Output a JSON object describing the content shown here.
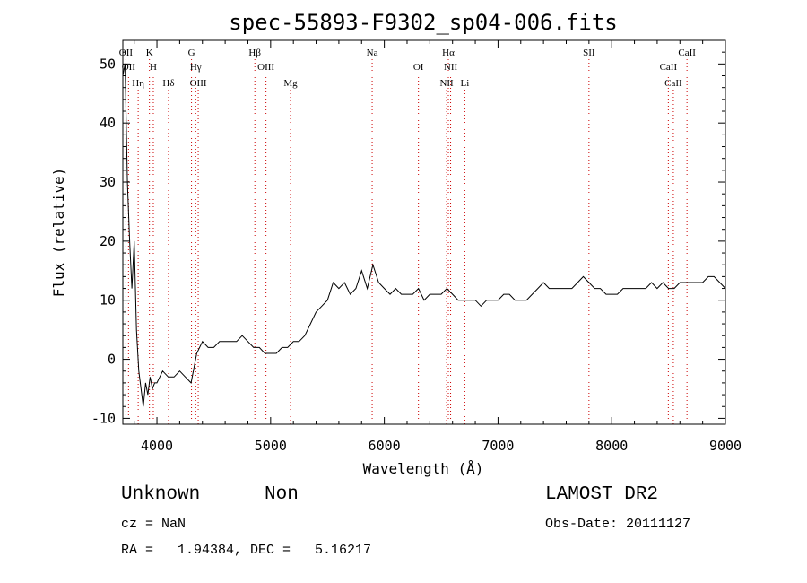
{
  "chart_data": {
    "type": "line",
    "title": "spec-55893-F9302_sp04-006.fits",
    "xlabel": "Wavelength (Å)",
    "ylabel": "Flux (relative)",
    "xlim": [
      3700,
      9000
    ],
    "ylim": [
      -11,
      54
    ],
    "xticks": [
      4000,
      5000,
      6000,
      7000,
      8000,
      9000
    ],
    "yticks": [
      -10,
      0,
      10,
      20,
      30,
      40,
      50
    ],
    "grid": false,
    "legend": "none",
    "line_color": "#000000",
    "marker_color": "#cc0000",
    "series": [
      {
        "x": [
          3700,
          3720,
          3740,
          3760,
          3780,
          3800,
          3820,
          3840,
          3860,
          3880,
          3900,
          3920,
          3940,
          3960,
          3980,
          4000,
          4050,
          4100,
          4150,
          4200,
          4250,
          4300,
          4350,
          4400,
          4450,
          4500,
          4550,
          4600,
          4650,
          4700,
          4750,
          4800,
          4850,
          4900,
          4950,
          5000,
          5050,
          5100,
          5150,
          5200,
          5250,
          5300,
          5350,
          5400,
          5450,
          5500,
          5550,
          5600,
          5650,
          5700,
          5750,
          5800,
          5850,
          5900,
          5950,
          6000,
          6050,
          6100,
          6150,
          6200,
          6250,
          6300,
          6350,
          6400,
          6450,
          6500,
          6550,
          6600,
          6650,
          6700,
          6750,
          6800,
          6850,
          6900,
          6950,
          7000,
          7050,
          7100,
          7150,
          7200,
          7250,
          7300,
          7350,
          7400,
          7450,
          7500,
          7550,
          7600,
          7650,
          7700,
          7750,
          7800,
          7850,
          7900,
          7950,
          8000,
          8050,
          8100,
          8150,
          8200,
          8250,
          8300,
          8350,
          8400,
          8450,
          8500,
          8550,
          8600,
          8650,
          8700,
          8750,
          8800,
          8850,
          8900,
          8950,
          9000
        ],
        "y": [
          48,
          50,
          30,
          20,
          12,
          20,
          5,
          -2,
          -5,
          -8,
          -4,
          -6,
          -3,
          -5,
          -4,
          -4,
          -2,
          -3,
          -3,
          -2,
          -3,
          -4,
          1,
          3,
          2,
          2,
          3,
          3,
          3,
          3,
          4,
          3,
          2,
          2,
          1,
          1,
          1,
          2,
          2,
          3,
          3,
          4,
          6,
          8,
          9,
          10,
          13,
          12,
          13,
          11,
          12,
          15,
          12,
          16,
          13,
          12,
          11,
          12,
          11,
          11,
          11,
          12,
          10,
          11,
          11,
          11,
          12,
          11,
          10,
          10,
          10,
          10,
          9,
          10,
          10,
          10,
          11,
          11,
          10,
          10,
          10,
          11,
          12,
          13,
          12,
          12,
          12,
          12,
          12,
          13,
          14,
          13,
          12,
          12,
          11,
          11,
          11,
          12,
          12,
          12,
          12,
          12,
          13,
          12,
          13,
          12,
          12,
          13,
          13,
          13,
          13,
          13,
          14,
          14,
          13,
          12
        ]
      }
    ],
    "lines": [
      {
        "wl": 3727,
        "label": "OII"
      },
      {
        "wl": 3750,
        "label": "OII"
      },
      {
        "wl": 3835,
        "label": "Hη"
      },
      {
        "wl": 3934,
        "label": "K"
      },
      {
        "wl": 3968,
        "label": "H"
      },
      {
        "wl": 4102,
        "label": "Hδ"
      },
      {
        "wl": 4304,
        "label": "G"
      },
      {
        "wl": 4341,
        "label": "Hγ"
      },
      {
        "wl": 4363,
        "label": "OIII"
      },
      {
        "wl": 4861,
        "label": "Hβ"
      },
      {
        "wl": 4959,
        "label": "OIII"
      },
      {
        "wl": 5175,
        "label": "Mg"
      },
      {
        "wl": 5893,
        "label": "Na"
      },
      {
        "wl": 6300,
        "label": "OI"
      },
      {
        "wl": 6548,
        "label": "NII"
      },
      {
        "wl": 6563,
        "label": "Hα"
      },
      {
        "wl": 6583,
        "label": "NII"
      },
      {
        "wl": 6708,
        "label": "Li"
      },
      {
        "wl": 7800,
        "label": "SII"
      },
      {
        "wl": 8498,
        "label": "CaII"
      },
      {
        "wl": 8542,
        "label": "CaII"
      },
      {
        "wl": 8662,
        "label": "CaII"
      }
    ]
  },
  "info": {
    "class": "Unknown",
    "subclass": "Non",
    "survey": "LAMOST DR2",
    "cz": "cz = NaN",
    "obs_date": "Obs-Date: 20111127",
    "radec": "RA =   1.94384, DEC =   5.16217"
  }
}
